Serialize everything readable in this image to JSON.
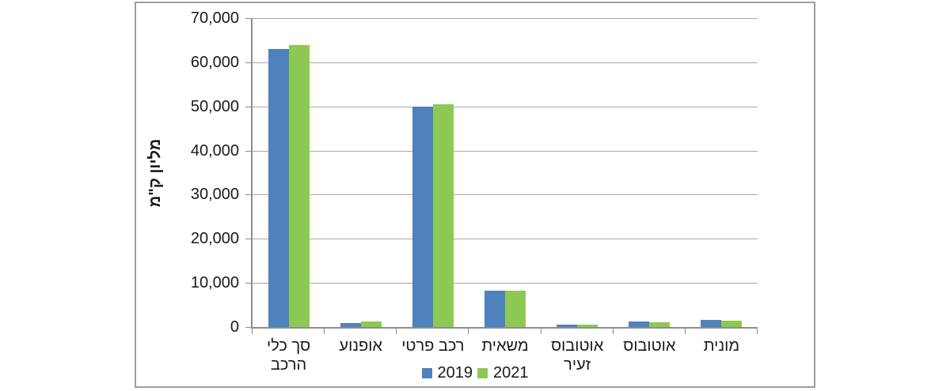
{
  "chart_data": {
    "type": "bar",
    "title": "",
    "ylabel": "מליון ק\"מ",
    "legend_position": "bottom",
    "grid": true,
    "categories": [
      {
        "label": "סך כלי הרכב",
        "lines": [
          "סך כלי",
          "הרכב"
        ]
      },
      {
        "label": "אופנוע",
        "lines": [
          "אופנוע"
        ]
      },
      {
        "label": "רכב פרטי",
        "lines": [
          "רכב פרטי"
        ]
      },
      {
        "label": "משאית",
        "lines": [
          "משאית"
        ]
      },
      {
        "label": "אוטובוס זעיר",
        "lines": [
          "אוטובוס",
          "זעיר"
        ]
      },
      {
        "label": "אוטובוס",
        "lines": [
          "אוטובוס"
        ]
      },
      {
        "label": "מונית",
        "lines": [
          "מונית"
        ]
      }
    ],
    "series": [
      {
        "name": "2019",
        "color": "#4F81BD",
        "values": [
          63000,
          900,
          50000,
          8300,
          600,
          1200,
          1700
        ]
      },
      {
        "name": "2021",
        "color": "#8DC952",
        "values": [
          64000,
          1200,
          50500,
          8300,
          550,
          1150,
          1400
        ]
      }
    ],
    "y_axis": {
      "min": 0,
      "max": 70000,
      "step": 10000,
      "tick_labels": [
        "0",
        "10,000",
        "20,000",
        "30,000",
        "40,000",
        "50,000",
        "60,000",
        "70,000"
      ]
    }
  },
  "colors": {
    "bar_2019": "#4F81BD",
    "bar_2021": "#8DC952",
    "gridline": "#a8a8a8",
    "axis": "#8c8c8c",
    "chart_border": "#9e9e9e",
    "text": "#1a1a1a"
  }
}
